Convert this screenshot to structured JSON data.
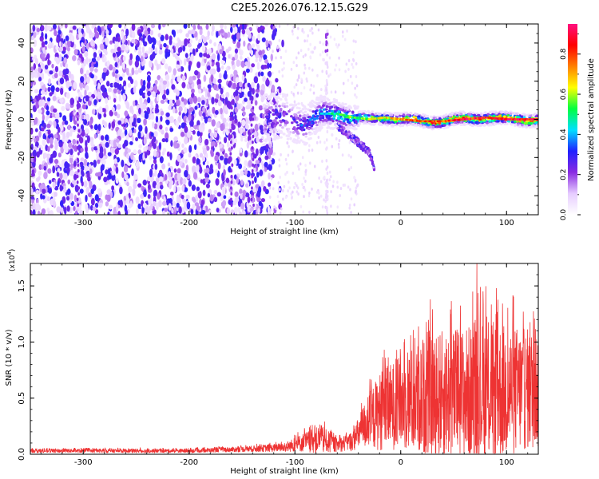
{
  "title": "C2E5.2026.076.12.15.G29",
  "chart_data": [
    {
      "type": "heatmap",
      "name": "spectrogram",
      "xlabel": "Height of straight line (km)",
      "ylabel": "Frequency (Hz)",
      "xlim": [
        -350,
        130
      ],
      "ylim": [
        -50,
        50
      ],
      "xticks": [
        -300,
        -200,
        -100,
        0,
        100
      ],
      "yticks": [
        -40,
        -20,
        0,
        20,
        40
      ],
      "xticklabels": [
        "-300",
        "-200",
        "-100",
        "0",
        "100"
      ],
      "yticklabels": [
        "-40",
        "-20",
        "0",
        "20",
        "40"
      ],
      "colorbar": {
        "label": "Normalized spectral amplitude",
        "range": [
          0,
          0.95
        ],
        "ticks": [
          0.0,
          0.2,
          0.4,
          0.6,
          0.8
        ],
        "ticklabels": [
          "0.0",
          "0.2",
          "0.4",
          "0.6",
          "0.8"
        ],
        "colors": [
          "#ffffff",
          "#e6ccff",
          "#8a2be2",
          "#2020ff",
          "#00e0ff",
          "#00ff40",
          "#ffff00",
          "#ff8000",
          "#ff0000",
          "#ff1080"
        ]
      },
      "signal_track": {
        "x": [
          -130,
          -110,
          -90,
          -75,
          -60,
          -45,
          -30,
          -15,
          0,
          20,
          40,
          60,
          80,
          100,
          120,
          130
        ],
        "freq": [
          -1,
          2,
          -3,
          3,
          3,
          1,
          0,
          1,
          0,
          -1,
          -1,
          0,
          1,
          0,
          0,
          0
        ],
        "amplitude": [
          0.25,
          0.3,
          0.35,
          0.4,
          0.5,
          0.55,
          0.6,
          0.65,
          0.7,
          0.8,
          0.82,
          0.85,
          0.85,
          0.88,
          0.9,
          0.9
        ]
      },
      "secondary_branch": {
        "x": [
          -60,
          -45,
          -30,
          -25
        ],
        "freq": [
          -3,
          -10,
          -17,
          -25
        ]
      }
    },
    {
      "type": "line",
      "name": "snr",
      "xlabel": "Height of straight line (km)",
      "ylabel": "SNR (10 * v/v)",
      "multiplier_label": "(x10",
      "multiplier_exp": "4",
      "multiplier_close": ")",
      "xlim": [
        -350,
        130
      ],
      "ylim": [
        0,
        17000
      ],
      "xticks": [
        -300,
        -200,
        -100,
        0,
        100
      ],
      "yticks": [
        0,
        5000,
        10000,
        15000
      ],
      "xticklabels": [
        "-300",
        "-200",
        "-100",
        "0",
        "100"
      ],
      "yticklabels": [
        "0.0",
        "0.5",
        "1.0",
        "1.5"
      ],
      "color": "#ee3333",
      "envelope": {
        "x": [
          -350,
          -200,
          -150,
          -110,
          -90,
          -75,
          -60,
          -45,
          -35,
          -20,
          0,
          20,
          40,
          60,
          80,
          100,
          120,
          130
        ],
        "mean": [
          300,
          300,
          450,
          600,
          1100,
          1300,
          800,
          1200,
          2500,
          3800,
          4600,
          5000,
          5300,
          5400,
          5500,
          5600,
          5800,
          5800
        ],
        "amp": [
          180,
          180,
          250,
          400,
          900,
          1300,
          600,
          900,
          2000,
          3500,
          4200,
          5200,
          5800,
          6000,
          6500,
          6000,
          5500,
          5500
        ]
      },
      "peaks": [
        {
          "x": 72,
          "y": 17000
        },
        {
          "x": 28,
          "y": 13800
        },
        {
          "x": 47,
          "y": 12900
        },
        {
          "x": 90,
          "y": 12500
        },
        {
          "x": 130,
          "y": 11800
        }
      ]
    }
  ]
}
